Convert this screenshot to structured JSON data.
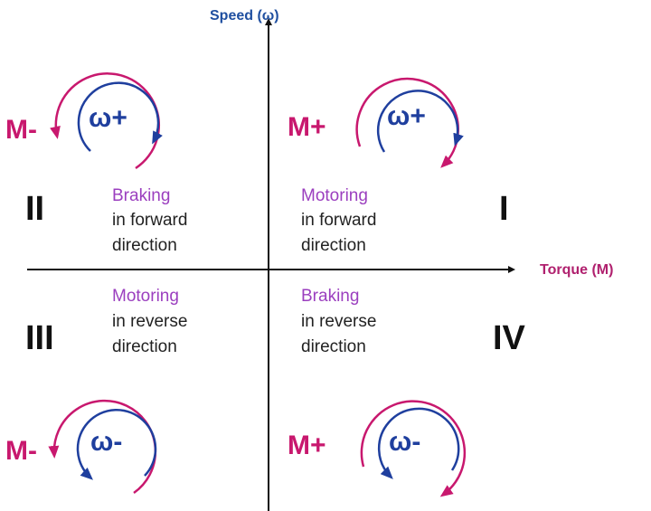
{
  "axes": {
    "y_label": "Speed (ω)",
    "x_label": "Torque (M)"
  },
  "colors": {
    "torque": "#c8186e",
    "speed": "#1f3f9e",
    "mode": "#9b3fbf",
    "axis_label_y": "#1f4fa0",
    "axis_label_x": "#b0206e"
  },
  "quadrants": [
    {
      "numeral": "I",
      "mode": "Motoring",
      "line1": "in forward",
      "line2": "direction",
      "torque": "M+",
      "speed": "ω+"
    },
    {
      "numeral": "II",
      "mode": "Braking",
      "line1": "in forward",
      "line2": "direction",
      "torque": "M-",
      "speed": "ω+"
    },
    {
      "numeral": "III",
      "mode": "Motoring",
      "line1": "in reverse",
      "line2": "direction",
      "torque": "M-",
      "speed": "ω-"
    },
    {
      "numeral": "IV",
      "mode": "Braking",
      "line1": "in reverse",
      "line2": "direction",
      "torque": "M+",
      "speed": "ω-"
    }
  ]
}
